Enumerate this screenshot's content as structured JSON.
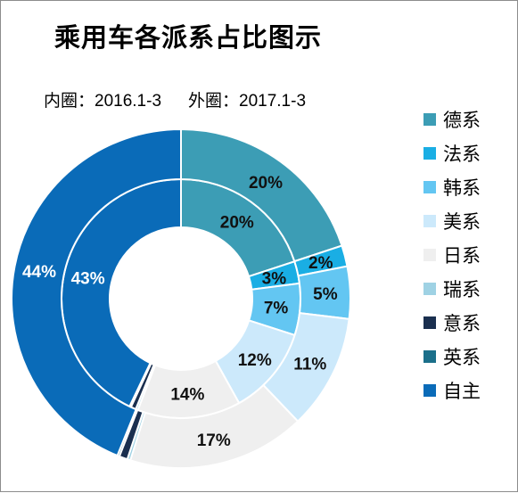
{
  "chart_data": {
    "type": "doughnut",
    "title": "乘用车各派系占比图示",
    "subtitle": {
      "inner": "内圈：2016.1-3",
      "outer": "外圈：2017.1-3"
    },
    "categories": [
      "德系",
      "法系",
      "韩系",
      "美系",
      "日系",
      "瑞系",
      "意系",
      "英系",
      "自主"
    ],
    "colors": [
      "#3C9DB5",
      "#1AAEE4",
      "#63C6F2",
      "#CCE9FB",
      "#EFEFEF",
      "#9FD2E4",
      "#1A2F4F",
      "#1B6F8A",
      "#0A6BB8"
    ],
    "series": [
      {
        "ring": "inner",
        "values": [
          20,
          3,
          7,
          12,
          14,
          0.3,
          0.7,
          0.2,
          43
        ],
        "labels": [
          "20%",
          "3%",
          "7%",
          "12%",
          "14%",
          "",
          "",
          "",
          "43%"
        ]
      },
      {
        "ring": "outer",
        "values": [
          20,
          2,
          5,
          11,
          17,
          0.3,
          0.8,
          0.2,
          44
        ],
        "labels": [
          "20%",
          "2%",
          "5%",
          "11%",
          "17%",
          "",
          "",
          "",
          "44%"
        ]
      }
    ],
    "legend_position": "right"
  }
}
